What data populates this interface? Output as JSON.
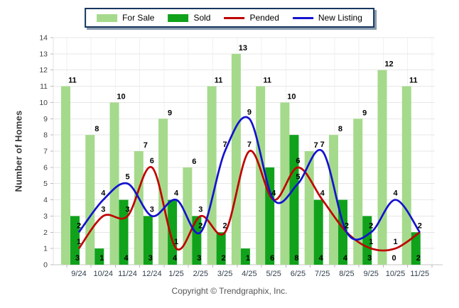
{
  "chart_data": {
    "type": "combo-bar-line",
    "categories": [
      "9/24",
      "10/24",
      "11/24",
      "12/24",
      "1/25",
      "2/25",
      "3/25",
      "4/25",
      "5/25",
      "6/25",
      "7/25",
      "8/25",
      "9/25",
      "10/25",
      "11/25"
    ],
    "series": [
      {
        "name": "For Sale",
        "type": "bar",
        "color": "#A5DA8C",
        "values": [
          11,
          8,
          10,
          7,
          9,
          6,
          11,
          13,
          11,
          10,
          7,
          8,
          9,
          12,
          11
        ]
      },
      {
        "name": "Sold",
        "type": "bar",
        "color": "#10A21B",
        "values": [
          3,
          1,
          4,
          3,
          4,
          3,
          2,
          1,
          6,
          8,
          4,
          4,
          3,
          0,
          2
        ]
      },
      {
        "name": "Pended",
        "type": "line",
        "color": "#C00000",
        "values": [
          1,
          3,
          3,
          6,
          1,
          3,
          2,
          7,
          4,
          6,
          4,
          2,
          1,
          1,
          2
        ]
      },
      {
        "name": "New Listing",
        "type": "line",
        "color": "#1412CE",
        "values": [
          2,
          4,
          5,
          3,
          4,
          2,
          7,
          9,
          4,
          5,
          7,
          2,
          2,
          4,
          2
        ]
      }
    ],
    "title": "",
    "xlabel": "",
    "ylabel": "Number of Homes",
    "ylim": [
      0,
      14
    ],
    "ytick_step": 1,
    "grid": true,
    "legend_position": "top-center",
    "value_labels": "shown for all series; Sold labels at bar base"
  },
  "footer": {
    "copyright": "Copyright © Trendgraphix, Inc."
  }
}
